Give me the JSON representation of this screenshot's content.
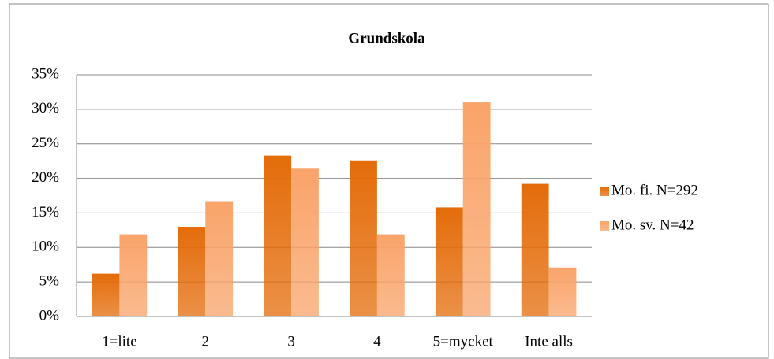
{
  "chart_data": {
    "type": "bar",
    "title": "Grundskola",
    "categories": [
      "1=lite",
      "2",
      "3",
      "4",
      "5=mycket",
      "Inte alls"
    ],
    "series": [
      {
        "name": "Mo. fi. N=292",
        "color": "#e46c0a",
        "values": [
          6.2,
          13.0,
          23.3,
          22.6,
          15.8,
          19.2
        ]
      },
      {
        "name": "Mo. sv. N=42",
        "color": "#f9a46a",
        "values": [
          11.9,
          16.7,
          21.4,
          11.9,
          31.0,
          7.1
        ]
      }
    ],
    "ylim": [
      0,
      35
    ],
    "yticks": [
      {
        "value": 0,
        "label": "0%"
      },
      {
        "value": 5,
        "label": "5%"
      },
      {
        "value": 10,
        "label": "10%"
      },
      {
        "value": 15,
        "label": "15%"
      },
      {
        "value": 20,
        "label": "20%"
      },
      {
        "value": 25,
        "label": "25%"
      },
      {
        "value": 30,
        "label": "30%"
      },
      {
        "value": 35,
        "label": "35%"
      }
    ],
    "grid": true,
    "legend": "right"
  }
}
